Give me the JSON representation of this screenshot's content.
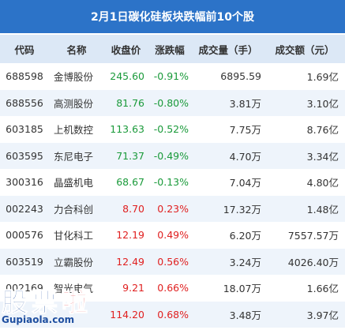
{
  "title": "2月1日碳化硅板块跌幅前10个股",
  "columns": [
    "代码",
    "名称",
    "收盘价",
    "涨跌幅",
    "成交量（手）",
    "成交额（元）"
  ],
  "rows": [
    {
      "code": "688598",
      "name": "金博股份",
      "close": "245.60",
      "change": "-0.91%",
      "volume": "6895.59",
      "amount": "1.69亿",
      "dir": "neg"
    },
    {
      "code": "688556",
      "name": "高测股份",
      "close": "81.76",
      "change": "-0.80%",
      "volume": "3.81万",
      "amount": "3.10亿",
      "dir": "neg"
    },
    {
      "code": "603185",
      "name": "上机数控",
      "close": "113.63",
      "change": "-0.52%",
      "volume": "7.75万",
      "amount": "8.76亿",
      "dir": "neg"
    },
    {
      "code": "603595",
      "name": "东尼电子",
      "close": "71.37",
      "change": "-0.49%",
      "volume": "4.70万",
      "amount": "3.34亿",
      "dir": "neg"
    },
    {
      "code": "300316",
      "name": "晶盛机电",
      "close": "68.67",
      "change": "-0.13%",
      "volume": "7.04万",
      "amount": "4.80亿",
      "dir": "neg"
    },
    {
      "code": "002243",
      "name": "力合科创",
      "close": "8.70",
      "change": "0.23%",
      "volume": "17.32万",
      "amount": "1.48亿",
      "dir": "pos"
    },
    {
      "code": "000576",
      "name": "甘化科工",
      "close": "12.19",
      "change": "0.49%",
      "volume": "6.20万",
      "amount": "7557.57万",
      "dir": "pos"
    },
    {
      "code": "603519",
      "name": "立霸股份",
      "close": "12.49",
      "change": "0.56%",
      "volume": "3.24万",
      "amount": "4026.40万",
      "dir": "pos"
    },
    {
      "code": "002169",
      "name": "智光电气",
      "close": "9.21",
      "change": "0.66%",
      "volume": "18.07万",
      "amount": "1.66亿",
      "dir": "pos"
    },
    {
      "code": "",
      "name": "",
      "close": "114.20",
      "change": "0.68%",
      "volume": "3.48万",
      "amount": "3.97亿",
      "dir": "pos"
    }
  ],
  "colors": {
    "header_bg": "#2c73c8",
    "col_header_bg": "#dce8f6",
    "alt_row": "#eef4fb",
    "up": "#e02020",
    "down": "#1a9a3a"
  },
  "watermark": {
    "chars": [
      "股",
      "票",
      "啦"
    ],
    "url": "Gupiaola.com"
  }
}
